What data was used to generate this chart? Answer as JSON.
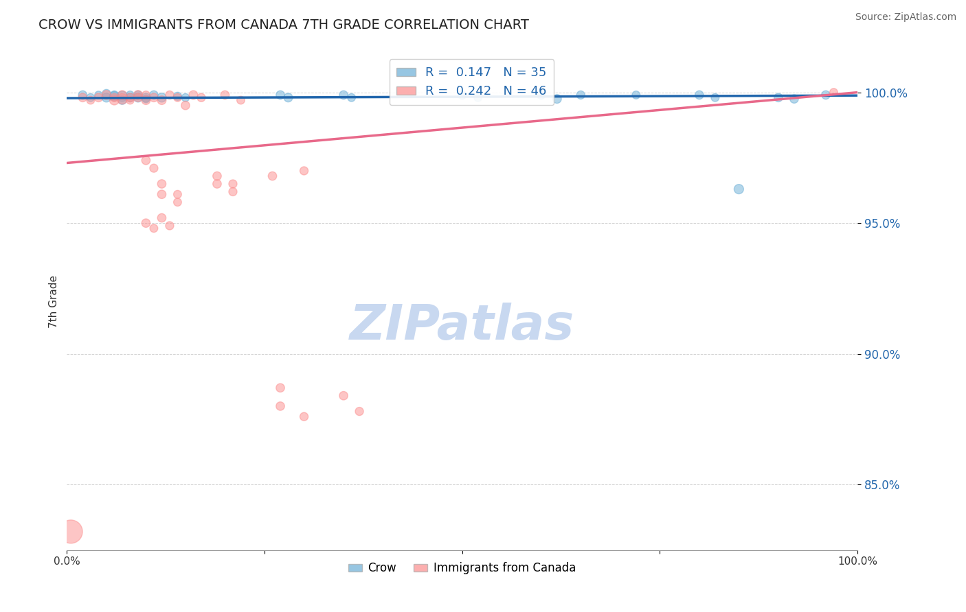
{
  "title": "CROW VS IMMIGRANTS FROM CANADA 7TH GRADE CORRELATION CHART",
  "source_text": "Source: ZipAtlas.com",
  "ylabel": "7th Grade",
  "xlim": [
    0.0,
    1.0
  ],
  "ylim": [
    0.825,
    1.015
  ],
  "yticks": [
    0.85,
    0.9,
    0.95,
    1.0
  ],
  "ytick_labels": [
    "85.0%",
    "90.0%",
    "95.0%",
    "100.0%"
  ],
  "xticks": [
    0.0,
    0.25,
    0.5,
    0.75,
    1.0
  ],
  "xtick_labels": [
    "0.0%",
    "",
    "",
    "",
    "100.0%"
  ],
  "legend_blue_label": "R =  0.147   N = 35",
  "legend_pink_label": "R =  0.242   N = 46",
  "blue_color": "#6baed6",
  "pink_color": "#fc8d8d",
  "blue_line_color": "#2166ac",
  "pink_line_color": "#e8698a",
  "watermark": "ZIPatlas",
  "watermark_color": "#c8d8f0",
  "crow_label": "Crow",
  "canada_label": "Immigrants from Canada",
  "blue_scatter_x": [
    0.02,
    0.03,
    0.04,
    0.05,
    0.05,
    0.06,
    0.06,
    0.07,
    0.07,
    0.08,
    0.08,
    0.09,
    0.09,
    0.1,
    0.1,
    0.11,
    0.12,
    0.14,
    0.15,
    0.27,
    0.28,
    0.35,
    0.36,
    0.5,
    0.52,
    0.6,
    0.62,
    0.65,
    0.72,
    0.8,
    0.82,
    0.85,
    0.9,
    0.92,
    0.96
  ],
  "blue_scatter_y": [
    0.999,
    0.998,
    0.999,
    0.9995,
    0.998,
    0.9985,
    0.999,
    0.9985,
    0.997,
    0.998,
    0.999,
    0.998,
    0.999,
    0.998,
    0.9975,
    0.999,
    0.998,
    0.9985,
    0.998,
    0.999,
    0.998,
    0.999,
    0.998,
    0.999,
    0.998,
    0.999,
    0.9975,
    0.999,
    0.999,
    0.999,
    0.998,
    0.963,
    0.998,
    0.9975,
    0.999
  ],
  "blue_scatter_sizes": [
    80,
    70,
    65,
    80,
    90,
    100,
    75,
    120,
    80,
    85,
    70,
    90,
    75,
    85,
    70,
    80,
    90,
    75,
    70,
    80,
    85,
    80,
    70,
    80,
    70,
    80,
    85,
    75,
    70,
    80,
    70,
    100,
    80,
    80,
    80
  ],
  "pink_scatter_x": [
    0.005,
    0.02,
    0.03,
    0.04,
    0.05,
    0.06,
    0.06,
    0.07,
    0.07,
    0.08,
    0.08,
    0.09,
    0.09,
    0.1,
    0.1,
    0.11,
    0.12,
    0.13,
    0.14,
    0.15,
    0.16,
    0.17,
    0.2,
    0.22,
    0.1,
    0.11,
    0.12,
    0.14,
    0.19,
    0.21,
    0.12,
    0.14,
    0.19,
    0.21,
    0.26,
    0.3,
    0.1,
    0.11,
    0.12,
    0.13,
    0.27,
    0.3,
    0.35,
    0.37,
    0.27,
    0.97
  ],
  "pink_scatter_y": [
    0.832,
    0.998,
    0.997,
    0.998,
    0.999,
    0.997,
    0.998,
    0.9975,
    0.999,
    0.998,
    0.997,
    0.999,
    0.998,
    0.997,
    0.999,
    0.998,
    0.997,
    0.999,
    0.998,
    0.995,
    0.999,
    0.998,
    0.999,
    0.997,
    0.974,
    0.971,
    0.965,
    0.961,
    0.968,
    0.965,
    0.961,
    0.958,
    0.965,
    0.962,
    0.968,
    0.97,
    0.95,
    0.948,
    0.952,
    0.949,
    0.88,
    0.876,
    0.884,
    0.878,
    0.887,
    1.0
  ],
  "pink_scatter_sizes": [
    600,
    80,
    70,
    80,
    90,
    100,
    75,
    120,
    85,
    80,
    70,
    90,
    75,
    85,
    70,
    80,
    85,
    75,
    70,
    80,
    85,
    75,
    80,
    70,
    80,
    75,
    80,
    70,
    80,
    75,
    80,
    70,
    80,
    75,
    80,
    75,
    80,
    70,
    80,
    75,
    80,
    75,
    80,
    75,
    80,
    70
  ],
  "blue_line_x": [
    0.0,
    1.0
  ],
  "blue_line_y": [
    0.9978,
    0.9988
  ],
  "pink_line_x": [
    0.0,
    1.0
  ],
  "pink_line_y": [
    0.973,
    1.0
  ],
  "grid_color": "#cccccc",
  "background_color": "#ffffff"
}
